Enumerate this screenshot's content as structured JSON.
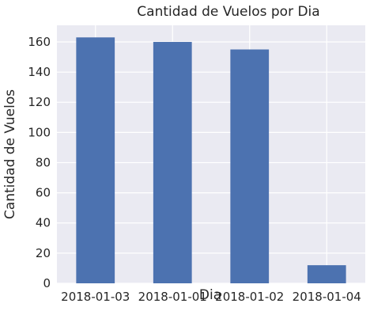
{
  "chart_data": {
    "type": "bar",
    "title": "Cantidad de Vuelos por Dia",
    "xlabel": "Dia",
    "ylabel": "Cantidad de Vuelos",
    "categories": [
      "2018-01-03",
      "2018-01-01",
      "2018-01-02",
      "2018-01-04"
    ],
    "values": [
      163,
      160,
      155,
      12
    ],
    "ylim": [
      0,
      171
    ],
    "yticks": [
      0,
      20,
      40,
      60,
      80,
      100,
      120,
      140,
      160
    ],
    "grid": true,
    "bar_color": "#4c72b0",
    "background_color": "#eaeaf2",
    "grid_color": "#ffffff"
  }
}
